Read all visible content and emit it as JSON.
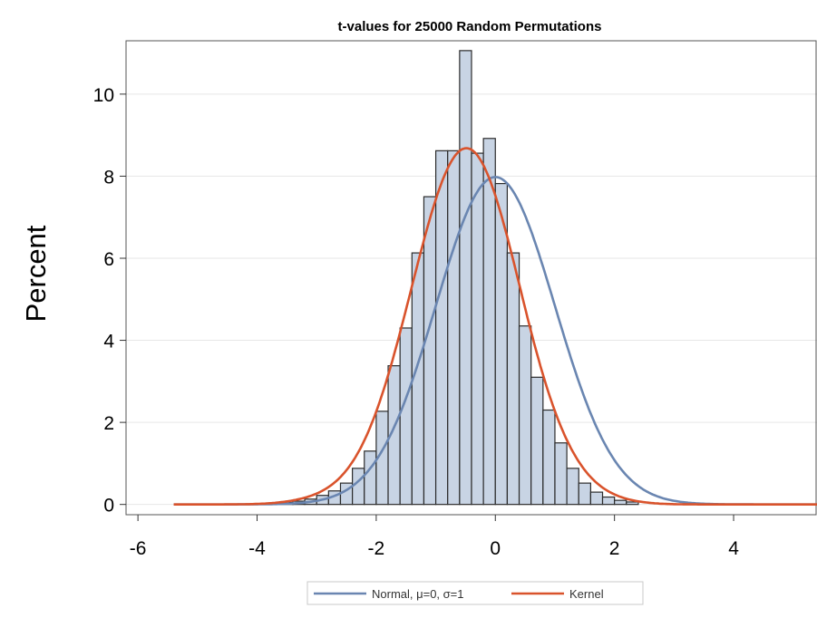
{
  "chart_data": {
    "type": "histogram",
    "title": "t-values for 25000 Random Permutations",
    "ylabel": "Percent",
    "xlabel": "",
    "xlim": [
      -6.2,
      5.4
    ],
    "ylim": [
      -0.25,
      11.3
    ],
    "grid": true,
    "x_ticks": [
      -6,
      -4,
      -2,
      0,
      2,
      4
    ],
    "y_ticks": [
      0,
      2,
      4,
      6,
      8,
      10
    ],
    "bin_width": 0.2,
    "bins": [
      {
        "x0": -3.6,
        "x1": -3.4,
        "value": 0.05
      },
      {
        "x0": -3.4,
        "x1": -3.2,
        "value": 0.08
      },
      {
        "x0": -3.2,
        "x1": -3.0,
        "value": 0.13
      },
      {
        "x0": -3.0,
        "x1": -2.8,
        "value": 0.22
      },
      {
        "x0": -2.8,
        "x1": -2.6,
        "value": 0.33
      },
      {
        "x0": -2.6,
        "x1": -2.4,
        "value": 0.52
      },
      {
        "x0": -2.4,
        "x1": -2.2,
        "value": 0.88
      },
      {
        "x0": -2.2,
        "x1": -2.0,
        "value": 1.3
      },
      {
        "x0": -2.0,
        "x1": -1.8,
        "value": 2.27
      },
      {
        "x0": -1.8,
        "x1": -1.6,
        "value": 3.38
      },
      {
        "x0": -1.6,
        "x1": -1.4,
        "value": 4.3
      },
      {
        "x0": -1.4,
        "x1": -1.2,
        "value": 6.13
      },
      {
        "x0": -1.2,
        "x1": -1.0,
        "value": 7.5
      },
      {
        "x0": -1.0,
        "x1": -0.8,
        "value": 8.62
      },
      {
        "x0": -0.8,
        "x1": -0.6,
        "value": 8.62
      },
      {
        "x0": -0.6,
        "x1": -0.4,
        "value": 11.06
      },
      {
        "x0": -0.4,
        "x1": -0.2,
        "value": 8.56
      },
      {
        "x0": -0.2,
        "x1": 0.0,
        "value": 8.92
      },
      {
        "x0": 0.0,
        "x1": 0.2,
        "value": 7.82
      },
      {
        "x0": 0.2,
        "x1": 0.4,
        "value": 6.13
      },
      {
        "x0": 0.4,
        "x1": 0.6,
        "value": 4.35
      },
      {
        "x0": 0.6,
        "x1": 0.8,
        "value": 3.1
      },
      {
        "x0": 0.8,
        "x1": 1.0,
        "value": 2.3
      },
      {
        "x0": 1.0,
        "x1": 1.2,
        "value": 1.5
      },
      {
        "x0": 1.2,
        "x1": 1.4,
        "value": 0.88
      },
      {
        "x0": 1.4,
        "x1": 1.6,
        "value": 0.52
      },
      {
        "x0": 1.6,
        "x1": 1.8,
        "value": 0.3
      },
      {
        "x0": 1.8,
        "x1": 2.0,
        "value": 0.18
      },
      {
        "x0": 2.0,
        "x1": 2.2,
        "value": 0.1
      },
      {
        "x0": 2.2,
        "x1": 2.4,
        "value": 0.06
      }
    ],
    "series": [
      {
        "name": "Normal, μ=0, σ=1",
        "kind": "normal",
        "mean": 0,
        "sd": 1,
        "x_range": [
          -5.4,
          5.4
        ],
        "color": "#6a86b1"
      },
      {
        "name": "Kernel",
        "kind": "kernel",
        "x_range": [
          -5.4,
          5.4
        ],
        "color": "#d9532c"
      }
    ],
    "bar_fill": "#c8d4e4",
    "bar_stroke": "#2b2b2b",
    "legend_position": "bottom"
  }
}
